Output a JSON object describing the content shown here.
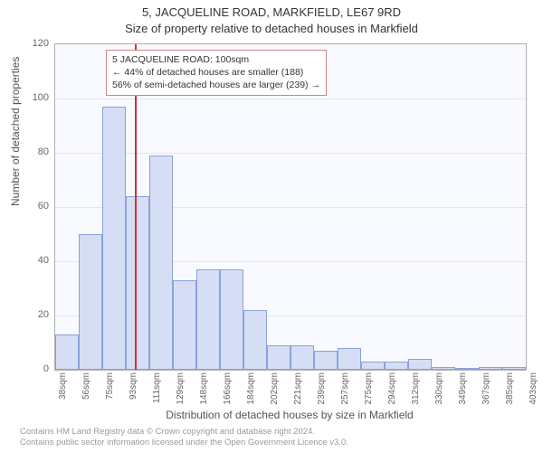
{
  "header": {
    "address_line": "5, JACQUELINE ROAD, MARKFIELD, LE67 9RD",
    "subtitle": "Size of property relative to detached houses in Markfield"
  },
  "axes": {
    "ylabel": "Number of detached properties",
    "xlabel": "Distribution of detached houses by size in Markfield"
  },
  "chart": {
    "type": "histogram",
    "background_color": "#f9faff",
    "border_color": "#b0b0b0",
    "grid_color": "#e3e6ef",
    "bar_fill": "#d6def5",
    "bar_border": "#8aa2da",
    "ref_line_color": "#cc3333",
    "ref_value_sqm": 100,
    "ylim": [
      0,
      120
    ],
    "ytick_step": 20,
    "yticks": [
      0,
      20,
      40,
      60,
      80,
      100,
      120
    ],
    "x_unit": "sqm",
    "x_min": 38,
    "x_bin_width": 18.3,
    "xticks": [
      38,
      56,
      75,
      93,
      111,
      129,
      148,
      166,
      184,
      202,
      221,
      239,
      257,
      275,
      294,
      312,
      330,
      349,
      367,
      385,
      403
    ],
    "values": [
      13,
      50,
      97,
      64,
      79,
      33,
      37,
      37,
      22,
      9,
      9,
      7,
      8,
      3,
      3,
      4,
      1,
      0,
      1,
      1
    ],
    "title_fontsize": 13,
    "label_fontsize": 12,
    "tick_fontsize": 10
  },
  "annotation": {
    "border_color": "#cc8888",
    "line1": "5 JACQUELINE ROAD: 100sqm",
    "line2": "← 44% of detached houses are smaller (188)",
    "line3": "56% of semi-detached houses are larger (239) →"
  },
  "footer": {
    "line1": "Contains HM Land Registry data © Crown copyright and database right 2024.",
    "line2": "Contains public sector information licensed under the Open Government Licence v3.0."
  }
}
